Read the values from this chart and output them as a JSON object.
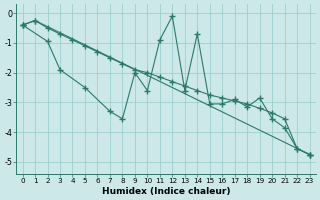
{
  "line1_x": [
    0,
    1,
    2,
    3,
    4,
    5,
    6,
    7,
    8,
    9,
    10,
    11,
    12,
    13,
    14,
    15,
    16,
    17,
    18,
    19,
    20,
    21,
    22,
    23
  ],
  "line1_y": [
    -0.4,
    -0.25,
    -0.5,
    -0.7,
    -0.9,
    -1.1,
    -1.3,
    -1.5,
    -1.7,
    -1.9,
    -2.0,
    -2.15,
    -2.3,
    -2.45,
    -2.6,
    -2.75,
    -2.85,
    -2.95,
    -3.05,
    -3.2,
    -3.35,
    -3.55,
    -4.55,
    -4.75
  ],
  "line2_x": [
    0,
    2,
    3,
    5,
    7,
    8,
    9,
    10,
    11,
    12,
    13,
    14,
    15,
    16,
    17,
    18,
    19,
    20,
    21,
    22,
    23
  ],
  "line2_y": [
    -0.4,
    -0.95,
    -1.9,
    -2.5,
    -3.3,
    -3.55,
    -2.0,
    -2.6,
    -0.9,
    -0.1,
    -2.6,
    -0.7,
    -3.05,
    -3.05,
    -2.9,
    -3.15,
    -2.85,
    -3.55,
    -3.85,
    -4.55,
    -4.75
  ],
  "line3_x": [
    0,
    1,
    23
  ],
  "line3_y": [
    -0.4,
    -0.25,
    -4.75
  ],
  "color": "#2a7a6a",
  "bg_color": "#cce8e8",
  "grid_color": "#9ecece",
  "xlabel": "Humidex (Indice chaleur)",
  "xlim": [
    -0.5,
    23.5
  ],
  "ylim": [
    -5.4,
    0.3
  ],
  "xticks": [
    0,
    1,
    2,
    3,
    4,
    5,
    6,
    7,
    8,
    9,
    10,
    11,
    12,
    13,
    14,
    15,
    16,
    17,
    18,
    19,
    20,
    21,
    22,
    23
  ],
  "yticks": [
    0,
    -1,
    -2,
    -3,
    -4,
    -5
  ]
}
